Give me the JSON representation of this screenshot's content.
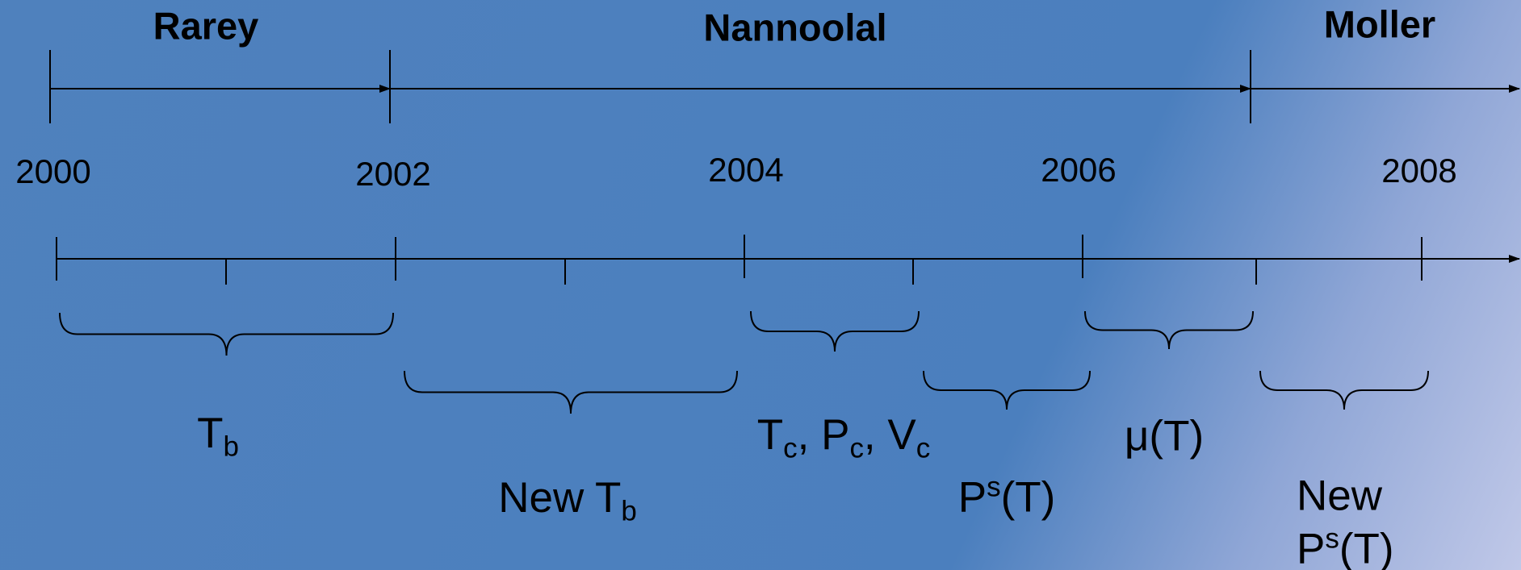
{
  "eras": [
    "Rarey",
    "Nannoolal",
    "Moller"
  ],
  "years": [
    "2000",
    "2002",
    "2004",
    "2006",
    "2008"
  ],
  "labels": [
    {
      "parts": [
        {
          "text": "T"
        },
        {
          "sub": "b"
        }
      ]
    },
    {
      "parts": [
        {
          "text": "New T"
        },
        {
          "sub": "b"
        }
      ]
    },
    {
      "parts": [
        {
          "text": "T"
        },
        {
          "sub": "c"
        },
        {
          "text": ", P"
        },
        {
          "sub": "c"
        },
        {
          "text": ", V"
        },
        {
          "sub": "c"
        }
      ]
    },
    {
      "parts": [
        {
          "text": "P"
        },
        {
          "sup": "s"
        },
        {
          "text": "(T)"
        }
      ]
    },
    {
      "parts": [
        {
          "text": "μ(T)"
        }
      ]
    },
    {
      "parts": [
        {
          "text": "New"
        }
      ]
    },
    {
      "parts": [
        {
          "text": "P"
        },
        {
          "sup": "s"
        },
        {
          "text": "(T)"
        }
      ]
    }
  ]
}
